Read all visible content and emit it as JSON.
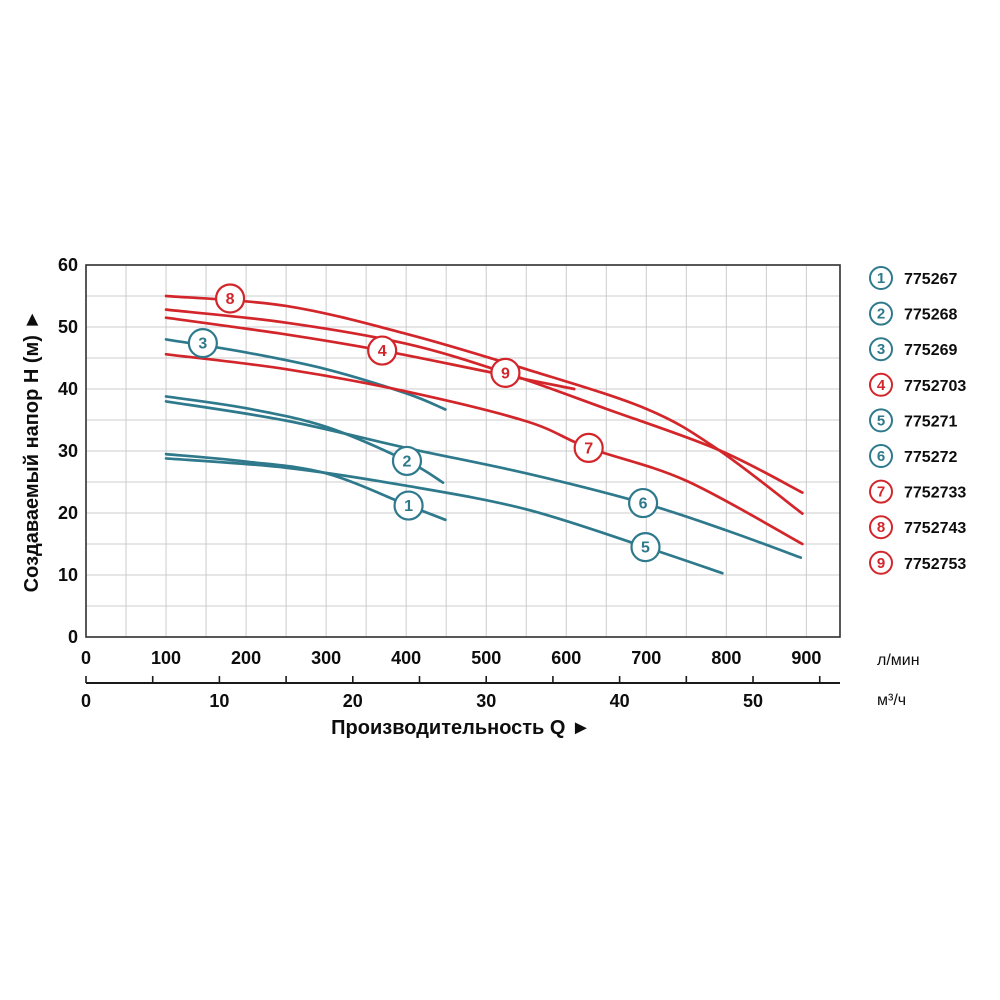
{
  "colors": {
    "teal": "#2e7a8c",
    "red": "#d2262b",
    "grid": "#cccccc",
    "border": "#2f2f2f",
    "axis": "#1a1a1a",
    "text": "#0d0d0d"
  },
  "chart_data": {
    "type": "line",
    "xlabel": "Производительность Q ►",
    "ylabel": "Создаваемый напор H (м) ►",
    "x_axis_primary": {
      "unit": "л/мин",
      "ticks": [
        0,
        100,
        200,
        300,
        400,
        500,
        600,
        700,
        800,
        900
      ],
      "range": [
        0,
        942
      ],
      "grid_step": 50
    },
    "x_axis_secondary": {
      "unit": "м³/ч",
      "ticks": [
        0,
        10,
        20,
        30,
        40,
        50
      ],
      "minor_tick_step": 5,
      "range": [
        0,
        56.5
      ]
    },
    "y_axis": {
      "ticks": [
        0,
        10,
        20,
        30,
        40,
        50,
        60
      ],
      "range": [
        0,
        60
      ],
      "grid_step": 5
    },
    "legend_position": "right",
    "grid": true,
    "series": [
      {
        "num": "1",
        "code": "775267",
        "color": "teal",
        "label_at": [
          403,
          21.2
        ],
        "points": [
          [
            100,
            29.5
          ],
          [
            200,
            28.3
          ],
          [
            300,
            26.4
          ],
          [
            403,
            21.2
          ],
          [
            449,
            18.9
          ]
        ]
      },
      {
        "num": "2",
        "code": "775268",
        "color": "teal",
        "label_at": [
          401,
          28.4
        ],
        "points": [
          [
            100,
            38.8
          ],
          [
            200,
            36.9
          ],
          [
            300,
            33.9
          ],
          [
            401,
            28.4
          ],
          [
            446,
            24.9
          ]
        ]
      },
      {
        "num": "3",
        "code": "775269",
        "color": "teal",
        "label_at": [
          146,
          47.4
        ],
        "points": [
          [
            100,
            48.0
          ],
          [
            200,
            45.9
          ],
          [
            300,
            43.2
          ],
          [
            400,
            39.3
          ],
          [
            449,
            36.7
          ]
        ]
      },
      {
        "num": "4",
        "code": "7752703",
        "color": "red",
        "label_at": [
          370,
          46.2
        ],
        "points": [
          [
            100,
            51.5
          ],
          [
            250,
            48.8
          ],
          [
            370,
            46.2
          ],
          [
            505,
            42.7
          ],
          [
            610,
            40.0
          ]
        ]
      },
      {
        "num": "5",
        "code": "775271",
        "color": "teal",
        "label_at": [
          699,
          14.5
        ],
        "points": [
          [
            100,
            28.8
          ],
          [
            250,
            27.3
          ],
          [
            400,
            24.4
          ],
          [
            550,
            20.6
          ],
          [
            699,
            14.5
          ],
          [
            795,
            10.3
          ]
        ]
      },
      {
        "num": "6",
        "code": "775272",
        "color": "teal",
        "label_at": [
          696,
          21.6
        ],
        "points": [
          [
            100,
            38.0
          ],
          [
            250,
            34.9
          ],
          [
            400,
            30.5
          ],
          [
            550,
            26.4
          ],
          [
            696,
            21.6
          ],
          [
            800,
            17.2
          ],
          [
            893,
            12.8
          ]
        ]
      },
      {
        "num": "7",
        "code": "7752733",
        "color": "red",
        "label_at": [
          628,
          30.5
        ],
        "points": [
          [
            100,
            45.6
          ],
          [
            250,
            43.2
          ],
          [
            400,
            39.6
          ],
          [
            550,
            34.8
          ],
          [
            628,
            30.5
          ],
          [
            750,
            25.2
          ],
          [
            895,
            15.0
          ]
        ]
      },
      {
        "num": "8",
        "code": "7752743",
        "color": "red",
        "label_at": [
          180,
          54.6
        ],
        "points": [
          [
            100,
            55.0
          ],
          [
            250,
            53.4
          ],
          [
            400,
            48.9
          ],
          [
            550,
            43.2
          ],
          [
            700,
            36.8
          ],
          [
            790,
            30.2
          ],
          [
            895,
            19.9
          ]
        ]
      },
      {
        "num": "9",
        "code": "7752753",
        "color": "red",
        "label_at": [
          524,
          42.6
        ],
        "points": [
          [
            100,
            52.8
          ],
          [
            250,
            50.7
          ],
          [
            400,
            47.3
          ],
          [
            524,
            42.6
          ],
          [
            650,
            36.8
          ],
          [
            790,
            30.2
          ],
          [
            895,
            23.3
          ]
        ]
      }
    ]
  }
}
